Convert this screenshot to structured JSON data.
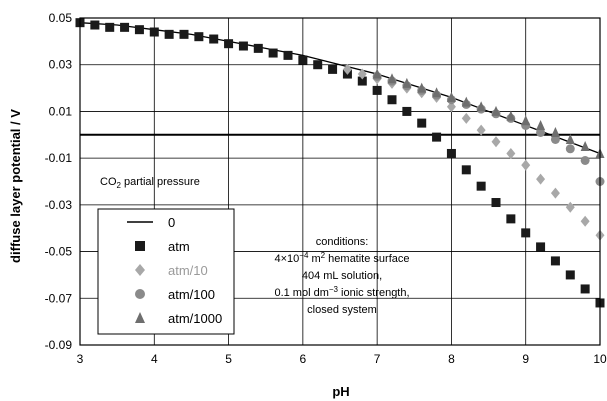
{
  "chart_data": {
    "type": "scatter",
    "xlabel": "pH",
    "ylabel": "diffuse layer potential / V",
    "xlim": [
      3,
      10
    ],
    "ylim": [
      -0.09,
      0.05
    ],
    "x_ticks": [
      "3",
      "4",
      "5",
      "6",
      "7",
      "8",
      "9",
      "10"
    ],
    "y_ticks": [
      "0.05",
      "0.03",
      "0.01",
      "-0.01",
      "-0.03",
      "-0.05",
      "-0.07",
      "-0.09"
    ],
    "grid": true,
    "annotation_co2": {
      "prefix": "CO",
      "sub": "2",
      "suffix": " partial pressure"
    },
    "conditions": {
      "title": "conditions:",
      "surface": {
        "pre": "4×10",
        "exp": "−4",
        "mid": " m",
        "exp2": "2",
        "post": " hematite surface"
      },
      "solution": "404 mL solution,",
      "ionic": {
        "pre": "0.1 mol dm",
        "exp": "−3",
        "post": "  ionic strength,"
      },
      "system": "closed system"
    },
    "legend": {
      "placement": "bottom-left",
      "entries": [
        {
          "label": "0",
          "marker": "line",
          "color": "#000000"
        },
        {
          "label": "atm",
          "marker": "square",
          "color": "#1a1a1a"
        },
        {
          "label": "atm/10",
          "marker": "diamond",
          "color": "#a8a8a8"
        },
        {
          "label": "atm/100",
          "marker": "circle",
          "color": "#8a8a8a"
        },
        {
          "label": "atm/1000",
          "marker": "triangle",
          "color": "#6e6e6e"
        }
      ]
    },
    "series": [
      {
        "name": "0",
        "marker": "line",
        "color": "#000000",
        "x": [
          3.0,
          3.5,
          4.0,
          4.5,
          5.0,
          5.5,
          6.0,
          6.5,
          7.0,
          7.5,
          8.0,
          8.5,
          9.0,
          9.5,
          10.0
        ],
        "y": [
          0.048,
          0.047,
          0.045,
          0.043,
          0.04,
          0.037,
          0.034,
          0.03,
          0.026,
          0.021,
          0.016,
          0.01,
          0.004,
          -0.002,
          -0.008
        ]
      },
      {
        "name": "atm",
        "marker": "square",
        "color": "#1a1a1a",
        "x": [
          3.0,
          3.2,
          3.4,
          3.6,
          3.8,
          4.0,
          4.2,
          4.4,
          4.6,
          4.8,
          5.0,
          5.2,
          5.4,
          5.6,
          5.8,
          6.0,
          6.2,
          6.4,
          6.6,
          6.8,
          7.0,
          7.2,
          7.4,
          7.6,
          7.8,
          8.0,
          8.2,
          8.4,
          8.6,
          8.8,
          9.0,
          9.2,
          9.4,
          9.6,
          9.8,
          10.0
        ],
        "y": [
          0.048,
          0.047,
          0.046,
          0.046,
          0.045,
          0.044,
          0.043,
          0.043,
          0.042,
          0.041,
          0.039,
          0.038,
          0.037,
          0.035,
          0.034,
          0.032,
          0.03,
          0.028,
          0.026,
          0.023,
          0.019,
          0.015,
          0.01,
          0.005,
          -0.001,
          -0.008,
          -0.015,
          -0.022,
          -0.029,
          -0.036,
          -0.042,
          -0.048,
          -0.054,
          -0.06,
          -0.066,
          -0.072
        ]
      },
      {
        "name": "atm/10",
        "marker": "diamond",
        "color": "#a8a8a8",
        "x": [
          6.6,
          6.8,
          7.0,
          7.2,
          7.4,
          7.6,
          7.8,
          8.0,
          8.2,
          8.4,
          8.6,
          8.8,
          9.0,
          9.2,
          9.4,
          9.6,
          9.8,
          10.0
        ],
        "y": [
          0.028,
          0.026,
          0.024,
          0.022,
          0.02,
          0.018,
          0.016,
          0.012,
          0.007,
          0.002,
          -0.003,
          -0.008,
          -0.013,
          -0.019,
          -0.025,
          -0.031,
          -0.037,
          -0.043
        ]
      },
      {
        "name": "atm/100",
        "marker": "circle",
        "color": "#8a8a8a",
        "x": [
          7.0,
          7.2,
          7.4,
          7.6,
          7.8,
          8.0,
          8.2,
          8.4,
          8.6,
          8.8,
          9.0,
          9.2,
          9.4,
          9.6,
          9.8,
          10.0
        ],
        "y": [
          0.025,
          0.023,
          0.021,
          0.019,
          0.017,
          0.015,
          0.013,
          0.011,
          0.009,
          0.007,
          0.004,
          0.001,
          -0.002,
          -0.006,
          -0.011,
          -0.02
        ]
      },
      {
        "name": "atm/1000",
        "marker": "triangle",
        "color": "#6e6e6e",
        "x": [
          7.0,
          7.2,
          7.4,
          7.6,
          7.8,
          8.0,
          8.2,
          8.4,
          8.6,
          8.8,
          9.0,
          9.2,
          9.4,
          9.6,
          9.8,
          10.0
        ],
        "y": [
          0.026,
          0.024,
          0.022,
          0.02,
          0.018,
          0.016,
          0.014,
          0.012,
          0.01,
          0.008,
          0.006,
          0.004,
          0.001,
          -0.002,
          -0.005,
          -0.008
        ]
      }
    ]
  }
}
